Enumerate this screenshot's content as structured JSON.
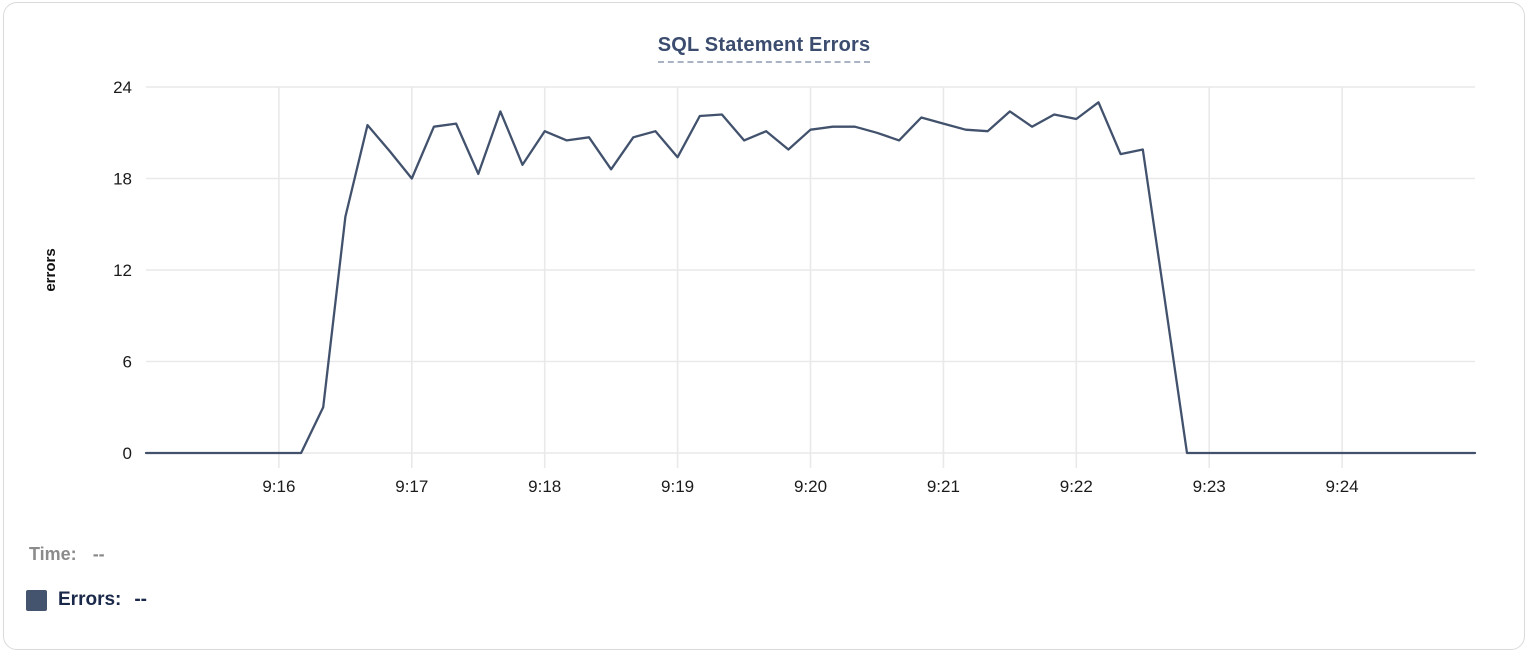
{
  "colors": {
    "title": "#3B4C6E",
    "title_underline": "#A9B3C4",
    "line": "#42526D",
    "swatch": "#44546E",
    "grid": "#E9E9E9",
    "tick_text": "#1B1B1B",
    "axis_label_text": "#111111",
    "time_label_text": "#8B8B8B",
    "errors_label_text": "#1A294A",
    "card_border": "#DADADA"
  },
  "chart_data": {
    "type": "line",
    "title": "SQL Statement Errors",
    "xlabel": "",
    "ylabel": "errors",
    "ylim": [
      0,
      24
    ],
    "y_ticks": [
      0,
      6,
      12,
      18,
      24
    ],
    "x_start": "9:15:00",
    "x_end": "9:25:00",
    "x_tick_labels": [
      "9:16",
      "9:17",
      "9:18",
      "9:19",
      "9:20",
      "9:21",
      "9:22",
      "9:23",
      "9:24"
    ],
    "grid": true,
    "legend_position": "bottom-left",
    "series": [
      {
        "name": "Errors",
        "color": "#42526D",
        "times": [
          "9:15:00",
          "9:15:10",
          "9:15:20",
          "9:15:30",
          "9:15:40",
          "9:15:50",
          "9:16:00",
          "9:16:10",
          "9:16:20",
          "9:16:30",
          "9:16:40",
          "9:16:50",
          "9:17:00",
          "9:17:10",
          "9:17:20",
          "9:17:30",
          "9:17:40",
          "9:17:50",
          "9:18:00",
          "9:18:10",
          "9:18:20",
          "9:18:30",
          "9:18:40",
          "9:18:50",
          "9:19:00",
          "9:19:10",
          "9:19:20",
          "9:19:30",
          "9:19:40",
          "9:19:50",
          "9:20:00",
          "9:20:10",
          "9:20:20",
          "9:20:30",
          "9:20:40",
          "9:20:50",
          "9:21:00",
          "9:21:10",
          "9:21:20",
          "9:21:30",
          "9:21:40",
          "9:21:50",
          "9:22:00",
          "9:22:10",
          "9:22:20",
          "9:22:30",
          "9:22:40",
          "9:22:50",
          "9:23:00",
          "9:23:10",
          "9:23:20",
          "9:23:30",
          "9:23:40",
          "9:23:50",
          "9:24:00",
          "9:24:10",
          "9:24:20",
          "9:24:30",
          "9:24:40",
          "9:24:50",
          "9:25:00"
        ],
        "values": [
          0,
          0,
          0,
          0,
          0,
          0,
          0,
          0,
          3,
          15.5,
          21.5,
          19.8,
          18,
          21.4,
          21.6,
          18.3,
          22.4,
          18.9,
          21.1,
          20.5,
          20.7,
          18.6,
          20.7,
          21.1,
          19.4,
          22.1,
          22.2,
          20.5,
          21.1,
          19.9,
          21.2,
          21.4,
          21.4,
          21,
          20.5,
          22,
          21.6,
          21.2,
          21.1,
          22.4,
          21.4,
          22.2,
          21.9,
          23,
          19.6,
          19.9,
          10,
          0,
          0,
          0,
          0,
          0,
          0,
          0,
          0,
          0,
          0,
          0,
          0,
          0,
          0
        ]
      }
    ]
  },
  "tooltip_readout": {
    "time_label": "Time:",
    "time_value": "--",
    "errors_label": "Errors:",
    "errors_value": "--"
  }
}
